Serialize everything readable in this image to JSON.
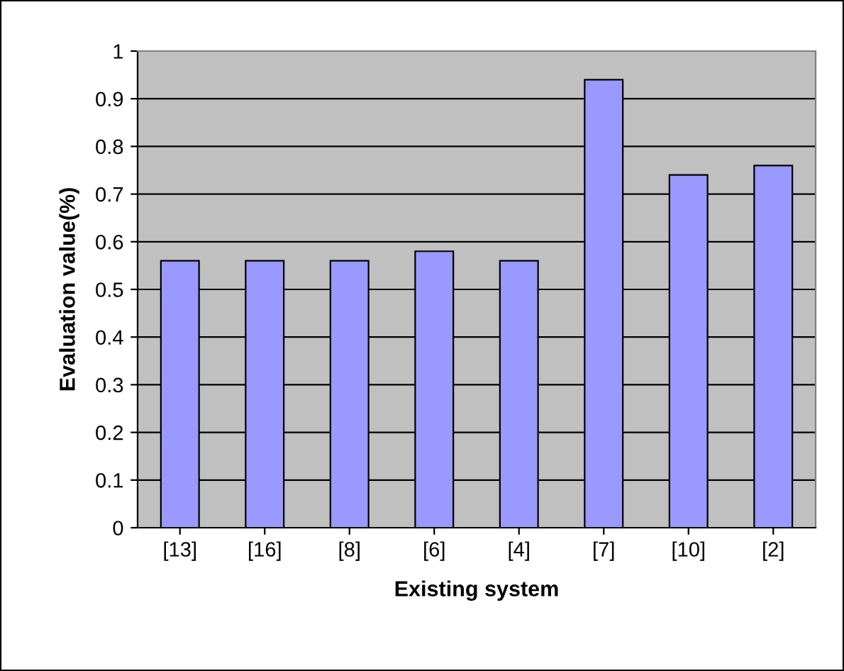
{
  "chart_data": {
    "type": "bar",
    "xlabel": "Existing system",
    "ylabel": "Evaluation value(%)",
    "categories": [
      "[13]",
      "[16]",
      "[8]",
      "[6]",
      "[4]",
      "[7]",
      "[10]",
      "[2]"
    ],
    "values": [
      0.56,
      0.56,
      0.56,
      0.58,
      0.56,
      0.94,
      0.74,
      0.76
    ],
    "color": "#9999ff",
    "ylim": [
      0,
      1
    ],
    "yticks": [
      0,
      0.1,
      0.2,
      0.3,
      0.4,
      0.5,
      0.6,
      0.7,
      0.8,
      0.9,
      1
    ],
    "grid": "y"
  }
}
